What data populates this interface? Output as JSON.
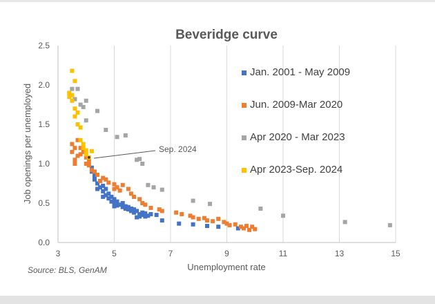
{
  "chart_data": {
    "type": "scatter",
    "title": "Beveridge curve",
    "xlabel": "Unemployment rate",
    "ylabel": "Job openings per unemployed",
    "xlim": [
      3,
      15
    ],
    "ylim": [
      0,
      2.5
    ],
    "xticks": [
      "3",
      "5",
      "7",
      "9",
      "11",
      "13",
      "15"
    ],
    "yticks": [
      "0.0",
      "0.5",
      "1.0",
      "1.5",
      "2.0",
      "2.5"
    ],
    "grid": "vertical",
    "legend_position": "right",
    "source": "Source: BLS, GenAM",
    "annotation": {
      "text": "Sep. 2024",
      "x": 4.1,
      "y": 1.08
    },
    "series": [
      {
        "name": "Jan. 2001 - May 2009",
        "color": "#4472C4",
        "points": [
          [
            4.2,
            0.95
          ],
          [
            4.2,
            0.9
          ],
          [
            4.3,
            0.85
          ],
          [
            4.3,
            0.8
          ],
          [
            4.4,
            0.75
          ],
          [
            4.5,
            0.7
          ],
          [
            4.5,
            0.78
          ],
          [
            4.6,
            0.72
          ],
          [
            4.6,
            0.65
          ],
          [
            4.7,
            0.68
          ],
          [
            4.7,
            0.6
          ],
          [
            4.8,
            0.62
          ],
          [
            4.8,
            0.56
          ],
          [
            4.9,
            0.58
          ],
          [
            4.9,
            0.52
          ],
          [
            5.0,
            0.55
          ],
          [
            5.0,
            0.5
          ],
          [
            5.1,
            0.52
          ],
          [
            5.1,
            0.47
          ],
          [
            5.2,
            0.48
          ],
          [
            5.3,
            0.45
          ],
          [
            5.3,
            0.5
          ],
          [
            5.4,
            0.43
          ],
          [
            5.4,
            0.46
          ],
          [
            5.5,
            0.42
          ],
          [
            5.5,
            0.45
          ],
          [
            5.6,
            0.4
          ],
          [
            5.7,
            0.42
          ],
          [
            5.7,
            0.38
          ],
          [
            5.8,
            0.4
          ],
          [
            5.9,
            0.36
          ],
          [
            5.9,
            0.33
          ],
          [
            6.0,
            0.38
          ],
          [
            6.0,
            0.35
          ],
          [
            6.1,
            0.37
          ],
          [
            6.2,
            0.34
          ],
          [
            6.3,
            0.36
          ],
          [
            6.5,
            0.35
          ],
          [
            6.7,
            0.28
          ],
          [
            7.3,
            0.24
          ],
          [
            7.8,
            0.23
          ],
          [
            8.3,
            0.21
          ],
          [
            8.7,
            0.2
          ],
          [
            9.4,
            0.18
          ],
          [
            4.4,
            0.68
          ],
          [
            4.6,
            0.58
          ],
          [
            5.0,
            0.46
          ],
          [
            5.6,
            0.43
          ],
          [
            5.8,
            0.32
          ],
          [
            6.1,
            0.33
          ]
        ]
      },
      {
        "name": "Jun. 2009-Mar 2020",
        "color": "#ED7D31",
        "points": [
          [
            3.5,
            1.25
          ],
          [
            3.5,
            1.15
          ],
          [
            3.6,
            1.2
          ],
          [
            3.6,
            1.05
          ],
          [
            3.7,
            1.3
          ],
          [
            3.7,
            1.1
          ],
          [
            3.8,
            1.2
          ],
          [
            3.8,
            1.12
          ],
          [
            3.9,
            1.15
          ],
          [
            4.0,
            1.08
          ],
          [
            4.0,
            1.0
          ],
          [
            4.1,
            0.98
          ],
          [
            4.2,
            0.92
          ],
          [
            4.3,
            0.9
          ],
          [
            4.4,
            0.86
          ],
          [
            4.6,
            0.82
          ],
          [
            4.7,
            0.8
          ],
          [
            4.8,
            0.76
          ],
          [
            5.0,
            0.74
          ],
          [
            5.0,
            0.68
          ],
          [
            5.1,
            0.7
          ],
          [
            5.3,
            0.73
          ],
          [
            5.5,
            0.68
          ],
          [
            5.6,
            0.62
          ],
          [
            5.7,
            0.58
          ],
          [
            5.9,
            0.55
          ],
          [
            6.0,
            0.5
          ],
          [
            6.1,
            0.48
          ],
          [
            6.3,
            0.44
          ],
          [
            6.6,
            0.42
          ],
          [
            6.7,
            0.4
          ],
          [
            7.2,
            0.38
          ],
          [
            7.4,
            0.36
          ],
          [
            7.7,
            0.34
          ],
          [
            7.8,
            0.32
          ],
          [
            8.0,
            0.3
          ],
          [
            8.2,
            0.31
          ],
          [
            8.3,
            0.28
          ],
          [
            8.5,
            0.27
          ],
          [
            8.7,
            0.3
          ],
          [
            8.9,
            0.26
          ],
          [
            9.0,
            0.24
          ],
          [
            9.1,
            0.22
          ],
          [
            9.3,
            0.23
          ],
          [
            9.5,
            0.2
          ],
          [
            9.6,
            0.18
          ],
          [
            9.7,
            0.21
          ],
          [
            9.8,
            0.16
          ],
          [
            9.9,
            0.2
          ],
          [
            10.0,
            0.17
          ],
          [
            3.6,
            1.0
          ],
          [
            4.1,
            1.03
          ],
          [
            4.5,
            0.78
          ],
          [
            5.2,
            0.66
          ]
        ]
      },
      {
        "name": "Apr 2020 - Mar 2023",
        "color": "#A5A5A5",
        "points": [
          [
            3.5,
            1.95
          ],
          [
            3.6,
            1.82
          ],
          [
            3.7,
            1.95
          ],
          [
            3.8,
            1.75
          ],
          [
            3.9,
            1.72
          ],
          [
            4.0,
            1.8
          ],
          [
            4.0,
            1.55
          ],
          [
            4.4,
            1.67
          ],
          [
            4.7,
            1.43
          ],
          [
            5.1,
            1.34
          ],
          [
            5.4,
            1.36
          ],
          [
            5.8,
            1.05
          ],
          [
            5.9,
            1.06
          ],
          [
            6.0,
            1.0
          ],
          [
            6.2,
            0.73
          ],
          [
            6.4,
            0.7
          ],
          [
            6.7,
            0.67
          ],
          [
            7.8,
            0.53
          ],
          [
            8.4,
            0.49
          ],
          [
            10.2,
            0.43
          ],
          [
            11.0,
            0.34
          ],
          [
            13.2,
            0.26
          ],
          [
            14.8,
            0.22
          ]
        ]
      },
      {
        "name": "Apr 2023-Sep. 2024",
        "color": "#FFC000",
        "points": [
          [
            3.4,
            1.85
          ],
          [
            3.4,
            1.9
          ],
          [
            3.5,
            1.87
          ],
          [
            3.5,
            1.8
          ],
          [
            3.5,
            2.18
          ],
          [
            3.6,
            2.05
          ],
          [
            3.6,
            1.7
          ],
          [
            3.6,
            1.6
          ],
          [
            3.7,
            1.65
          ],
          [
            3.7,
            1.5
          ],
          [
            3.8,
            1.46
          ],
          [
            3.8,
            1.3
          ],
          [
            3.9,
            1.25
          ],
          [
            3.9,
            1.2
          ],
          [
            4.0,
            1.17
          ],
          [
            4.0,
            1.12
          ],
          [
            4.1,
            1.08
          ],
          [
            4.2,
            1.16
          ]
        ]
      }
    ]
  }
}
